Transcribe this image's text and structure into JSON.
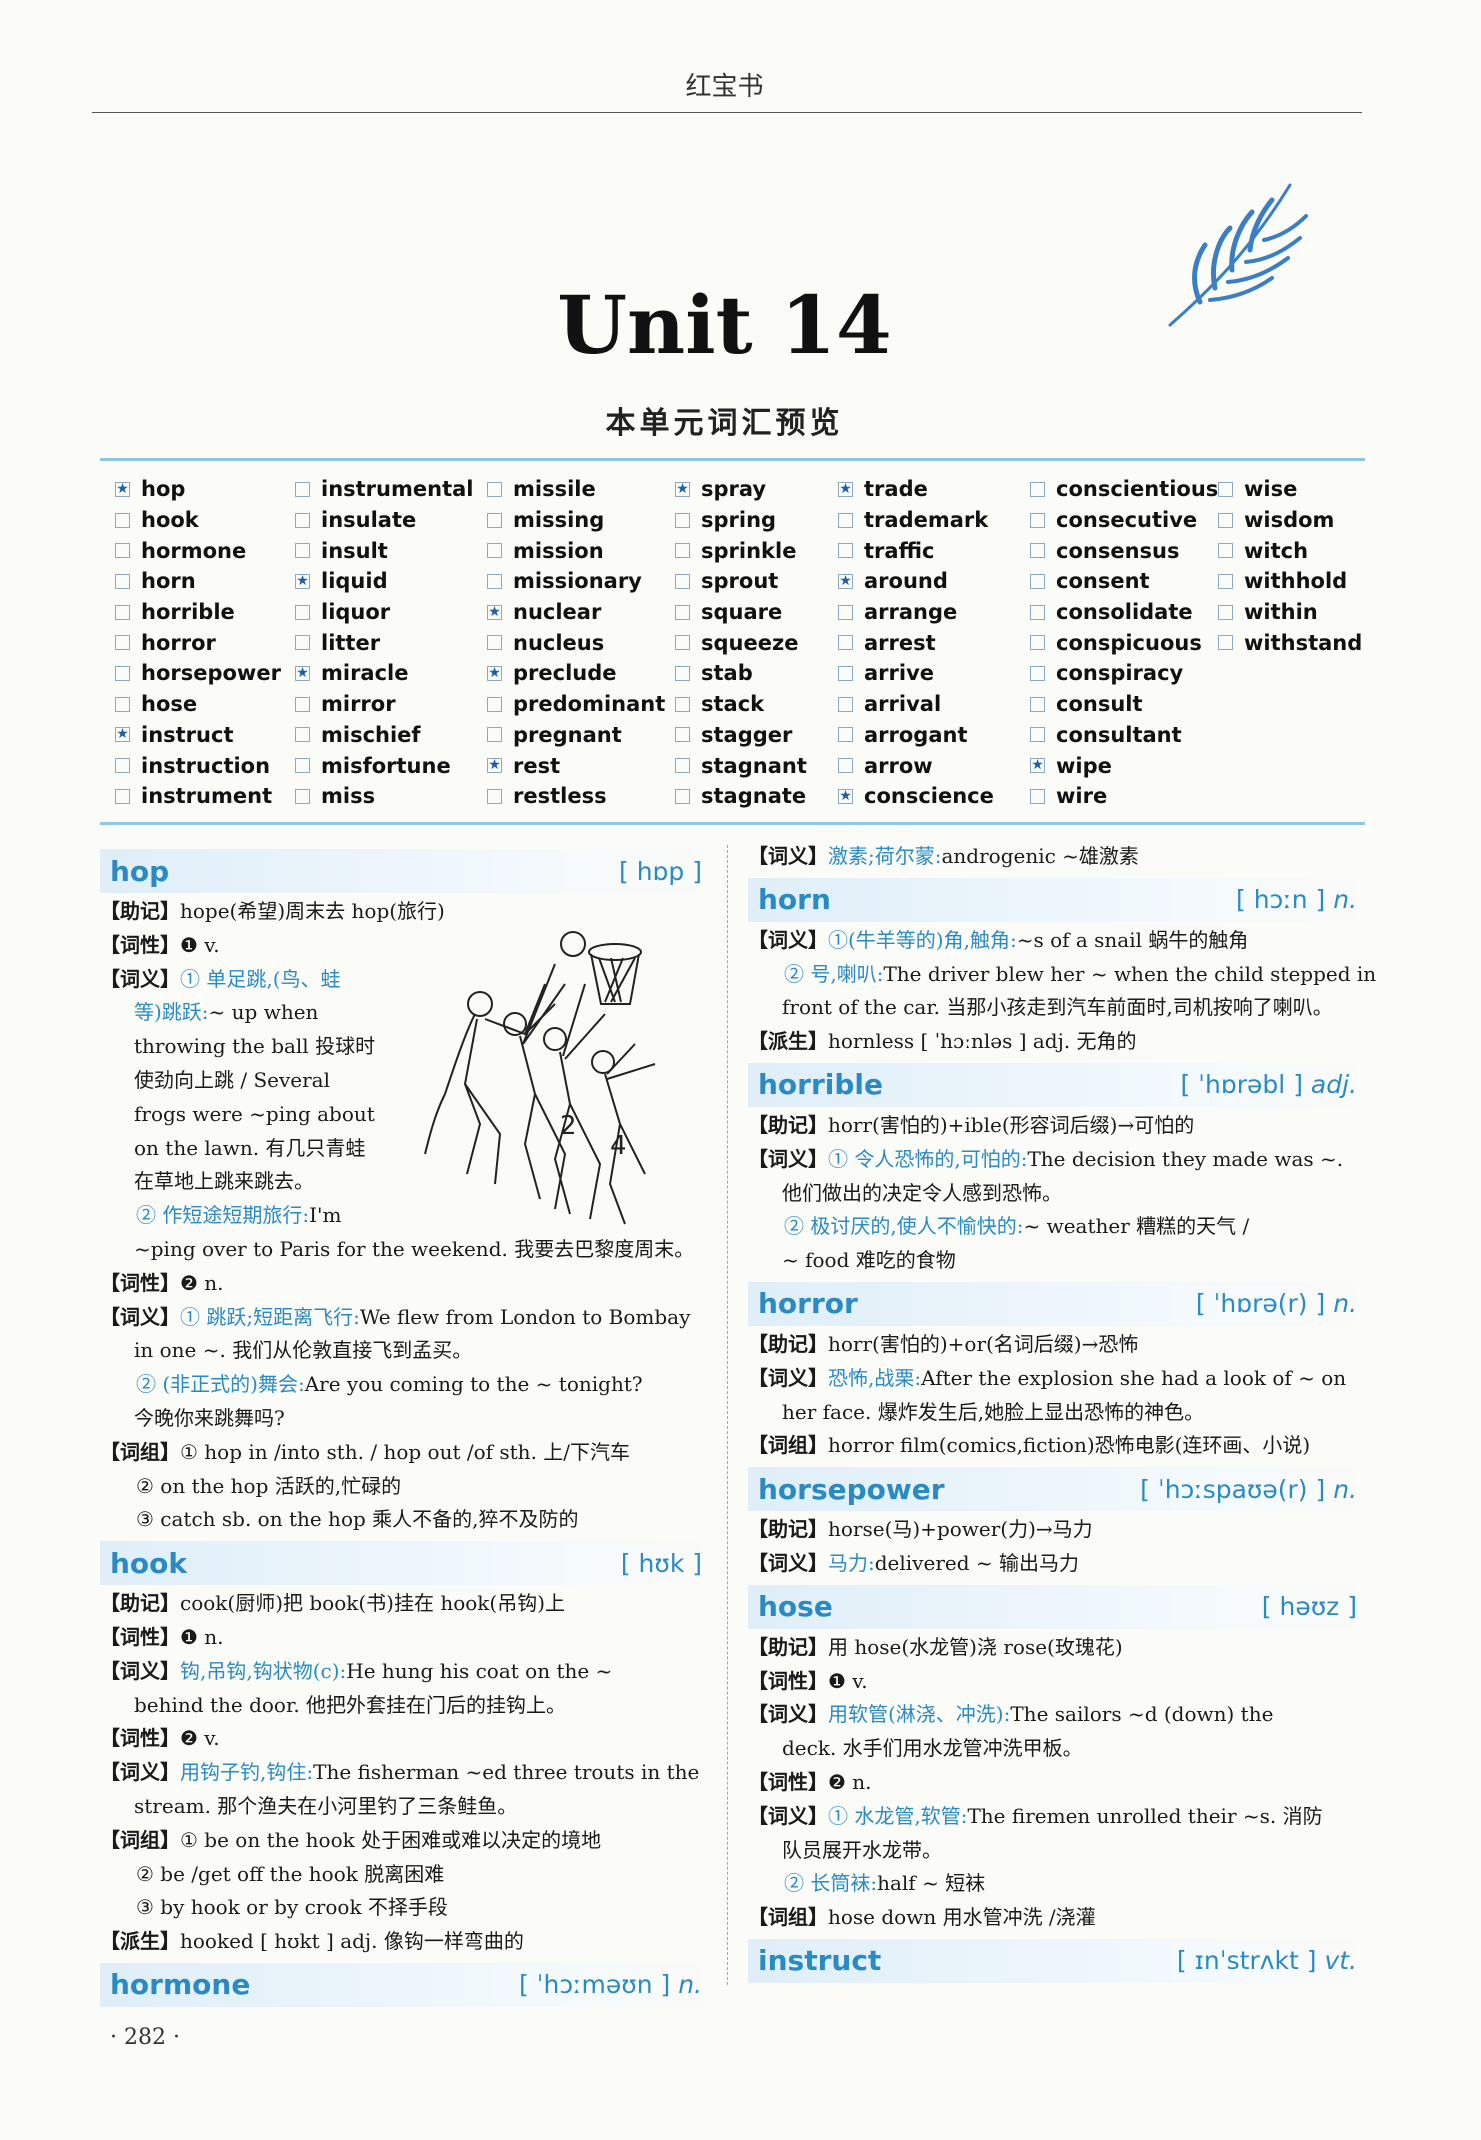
{
  "header": {
    "title": "红宝书"
  },
  "unit_title": "Unit  14",
  "preview_title": "本单元词汇预览",
  "word_columns": [
    [
      {
        "w": "hop",
        "star": true
      },
      {
        "w": "hook"
      },
      {
        "w": "hormone"
      },
      {
        "w": "horn"
      },
      {
        "w": "horrible"
      },
      {
        "w": "horror"
      },
      {
        "w": "horsepower"
      },
      {
        "w": "hose"
      },
      {
        "w": "instruct",
        "star": true
      },
      {
        "w": "instruction"
      },
      {
        "w": "instrument"
      }
    ],
    [
      {
        "w": "instrumental"
      },
      {
        "w": "insulate"
      },
      {
        "w": "insult"
      },
      {
        "w": "liquid",
        "star": true
      },
      {
        "w": "liquor"
      },
      {
        "w": "litter"
      },
      {
        "w": "miracle",
        "star": true
      },
      {
        "w": "mirror"
      },
      {
        "w": "mischief"
      },
      {
        "w": "misfortune"
      },
      {
        "w": "miss"
      }
    ],
    [
      {
        "w": "missile"
      },
      {
        "w": "missing"
      },
      {
        "w": "mission"
      },
      {
        "w": "missionary"
      },
      {
        "w": "nuclear",
        "star": true
      },
      {
        "w": "nucleus"
      },
      {
        "w": "preclude",
        "star": true
      },
      {
        "w": "predominant"
      },
      {
        "w": "pregnant"
      },
      {
        "w": "rest",
        "star": true
      },
      {
        "w": "restless"
      }
    ],
    [
      {
        "w": "spray",
        "star": true
      },
      {
        "w": "spring"
      },
      {
        "w": "sprinkle"
      },
      {
        "w": "sprout"
      },
      {
        "w": "square"
      },
      {
        "w": "squeeze"
      },
      {
        "w": "stab"
      },
      {
        "w": "stack"
      },
      {
        "w": "stagger"
      },
      {
        "w": "stagnant"
      },
      {
        "w": "stagnate"
      }
    ],
    [
      {
        "w": "trade",
        "star": true
      },
      {
        "w": "trademark"
      },
      {
        "w": "traffic"
      },
      {
        "w": "around",
        "star": true
      },
      {
        "w": "arrange"
      },
      {
        "w": "arrest"
      },
      {
        "w": "arrive"
      },
      {
        "w": "arrival"
      },
      {
        "w": "arrogant"
      },
      {
        "w": "arrow"
      },
      {
        "w": "conscience",
        "star": true
      }
    ],
    [
      {
        "w": "conscientious"
      },
      {
        "w": "consecutive"
      },
      {
        "w": "consensus"
      },
      {
        "w": "consent"
      },
      {
        "w": "consolidate"
      },
      {
        "w": "conspicuous"
      },
      {
        "w": "conspiracy"
      },
      {
        "w": "consult"
      },
      {
        "w": "consultant"
      },
      {
        "w": "wipe",
        "star": true
      },
      {
        "w": "wire"
      }
    ],
    [
      {
        "w": "wise"
      },
      {
        "w": "wisdom"
      },
      {
        "w": "witch"
      },
      {
        "w": "withhold"
      },
      {
        "w": "within"
      },
      {
        "w": "withstand"
      }
    ]
  ],
  "left_column": [
    {
      "kind": "head",
      "word": "hop",
      "phon": "[ hɒp ]",
      "pos": ""
    },
    {
      "kind": "line",
      "tag": "【助记】",
      "text": "hope(希望)周末去 hop(旅行)"
    },
    {
      "kind": "line",
      "tag": "【词性】",
      "text": "❶ v."
    },
    {
      "kind": "line",
      "tag": "【词义】",
      "cn": "① 单足跳,(鸟、蛙",
      "text": ""
    },
    {
      "kind": "sub",
      "cn": "等)跳跃:",
      "text": "~ up when"
    },
    {
      "kind": "sub",
      "text": "throwing the ball 投球时"
    },
    {
      "kind": "sub",
      "text": "使劲向上跳 / Several"
    },
    {
      "kind": "sub",
      "text": "frogs were ~ping about"
    },
    {
      "kind": "sub",
      "text": "on the lawn. 有几只青蛙"
    },
    {
      "kind": "sub",
      "text": "在草地上跳来跳去。"
    },
    {
      "kind": "sub2",
      "cn": "② 作短途短期旅行:",
      "text": "I'm"
    },
    {
      "kind": "sub",
      "text": "~ping over to Paris for the weekend. 我要去巴黎度周末。"
    },
    {
      "kind": "line",
      "tag": "【词性】",
      "text": "❷ n."
    },
    {
      "kind": "line",
      "tag": "【词义】",
      "cn": "① 跳跃;短距离飞行:",
      "text": "We flew from London to Bombay"
    },
    {
      "kind": "sub",
      "text": "in one ~. 我们从伦敦直接飞到孟买。"
    },
    {
      "kind": "sub2",
      "cn": "② (非正式的)舞会:",
      "text": "Are you coming to the ~ tonight?"
    },
    {
      "kind": "sub",
      "text": "今晚你来跳舞吗?"
    },
    {
      "kind": "line",
      "tag": "【词组】",
      "text": "① hop in /into sth. / hop out /of sth.  上/下汽车"
    },
    {
      "kind": "sub2",
      "text": "② on the hop 活跃的,忙碌的"
    },
    {
      "kind": "sub2",
      "text": "③ catch sb. on the hop 乘人不备的,猝不及防的"
    },
    {
      "kind": "head",
      "word": "hook",
      "phon": "[ hʊk ]",
      "pos": ""
    },
    {
      "kind": "line",
      "tag": "【助记】",
      "text": "cook(厨师)把 book(书)挂在 hook(吊钩)上"
    },
    {
      "kind": "line",
      "tag": "【词性】",
      "text": "❶ n."
    },
    {
      "kind": "line",
      "tag": "【词义】",
      "cn": "钩,吊钩,钩状物(c):",
      "text": "He hung his coat on the ~"
    },
    {
      "kind": "sub",
      "text": "behind the door. 他把外套挂在门后的挂钩上。"
    },
    {
      "kind": "line",
      "tag": "【词性】",
      "text": "❷ v."
    },
    {
      "kind": "line",
      "tag": "【词义】",
      "cn": "用钩子钓,钩住:",
      "text": "The fisherman ~ed three trouts in the"
    },
    {
      "kind": "sub",
      "text": "stream. 那个渔夫在小河里钓了三条鲑鱼。"
    },
    {
      "kind": "line",
      "tag": "【词组】",
      "text": "① be on the hook 处于困难或难以决定的境地"
    },
    {
      "kind": "sub2",
      "text": "② be /get off the hook 脱离困难"
    },
    {
      "kind": "sub2",
      "text": "③ by hook or by crook 不择手段"
    },
    {
      "kind": "line",
      "tag": "【派生】",
      "text": "hooked [ hʊkt ] adj. 像钩一样弯曲的"
    },
    {
      "kind": "head",
      "word": "hormone",
      "phon": "[ ˈhɔːməʊn ]",
      "pos": "n."
    }
  ],
  "right_column": [
    {
      "kind": "line",
      "tag": "【词义】",
      "cn": "激素;荷尔蒙:",
      "text": "androgenic ~雄激素"
    },
    {
      "kind": "head",
      "word": "horn",
      "phon": "[ hɔːn ]",
      "pos": "n."
    },
    {
      "kind": "line",
      "tag": "【词义】",
      "cn": "①(牛羊等的)角,触角:",
      "text": "~s of a snail 蜗牛的触角"
    },
    {
      "kind": "sub2",
      "cn": "② 号,喇叭:",
      "text": "The driver blew her ~ when the child stepped in"
    },
    {
      "kind": "sub",
      "text": "front of the car. 当那小孩走到汽车前面时,司机按响了喇叭。"
    },
    {
      "kind": "line",
      "tag": "【派生】",
      "text": "hornless [ ˈhɔːnləs ] adj. 无角的"
    },
    {
      "kind": "head",
      "word": "horrible",
      "phon": "[ ˈhɒrəbl ]",
      "pos": "adj."
    },
    {
      "kind": "line",
      "tag": "【助记】",
      "text": "horr(害怕的)+ible(形容词后缀)→可怕的"
    },
    {
      "kind": "line",
      "tag": "【词义】",
      "cn": "① 令人恐怖的,可怕的:",
      "text": "The decision they made was ~."
    },
    {
      "kind": "sub",
      "text": "他们做出的决定令人感到恐怖。"
    },
    {
      "kind": "sub2",
      "cn": "② 极讨厌的,使人不愉快的:",
      "text": "~ weather 糟糕的天气 /"
    },
    {
      "kind": "sub",
      "text": "~ food 难吃的食物"
    },
    {
      "kind": "head",
      "word": "horror",
      "phon": "[ ˈhɒrə(r) ]",
      "pos": "n."
    },
    {
      "kind": "line",
      "tag": "【助记】",
      "text": "horr(害怕的)+or(名词后缀)→恐怖"
    },
    {
      "kind": "line",
      "tag": "【词义】",
      "cn": "恐怖,战栗:",
      "text": "After the explosion she had a look of ~ on"
    },
    {
      "kind": "sub",
      "text": "her face. 爆炸发生后,她脸上显出恐怖的神色。"
    },
    {
      "kind": "line",
      "tag": "【词组】",
      "text": "horror film(comics,fiction)恐怖电影(连环画、小说)"
    },
    {
      "kind": "head",
      "word": "horsepower",
      "phon": "[ ˈhɔːspaʊə(r) ]",
      "pos": "n."
    },
    {
      "kind": "line",
      "tag": "【助记】",
      "text": "horse(马)+power(力)→马力"
    },
    {
      "kind": "line",
      "tag": "【词义】",
      "cn": "马力:",
      "text": "delivered ~ 输出马力"
    },
    {
      "kind": "head",
      "word": "hose",
      "phon": "[ həʊz ]",
      "pos": ""
    },
    {
      "kind": "line",
      "tag": "【助记】",
      "text": "用 hose(水龙管)浇 rose(玫瑰花)"
    },
    {
      "kind": "line",
      "tag": "【词性】",
      "text": "❶ v."
    },
    {
      "kind": "line",
      "tag": "【词义】",
      "cn": "用软管(淋浇、冲洗):",
      "text": "The sailors ~d (down) the"
    },
    {
      "kind": "sub",
      "text": "deck. 水手们用水龙管冲洗甲板。"
    },
    {
      "kind": "line",
      "tag": "【词性】",
      "text": "❷ n."
    },
    {
      "kind": "line",
      "tag": "【词义】",
      "cn": "① 水龙管,软管:",
      "text": "The firemen unrolled their ~s. 消防"
    },
    {
      "kind": "sub",
      "text": "队员展开水龙带。"
    },
    {
      "kind": "sub2",
      "cn": "② 长筒袜:",
      "text": "half ~ 短袜"
    },
    {
      "kind": "line",
      "tag": "【词组】",
      "text": "hose down 用水管冲洗 /浇灌"
    },
    {
      "kind": "head",
      "word": "instruct",
      "phon": "[ ɪnˈstrʌkt ]",
      "pos": "vt."
    }
  ],
  "page_number": "· 282 ·"
}
